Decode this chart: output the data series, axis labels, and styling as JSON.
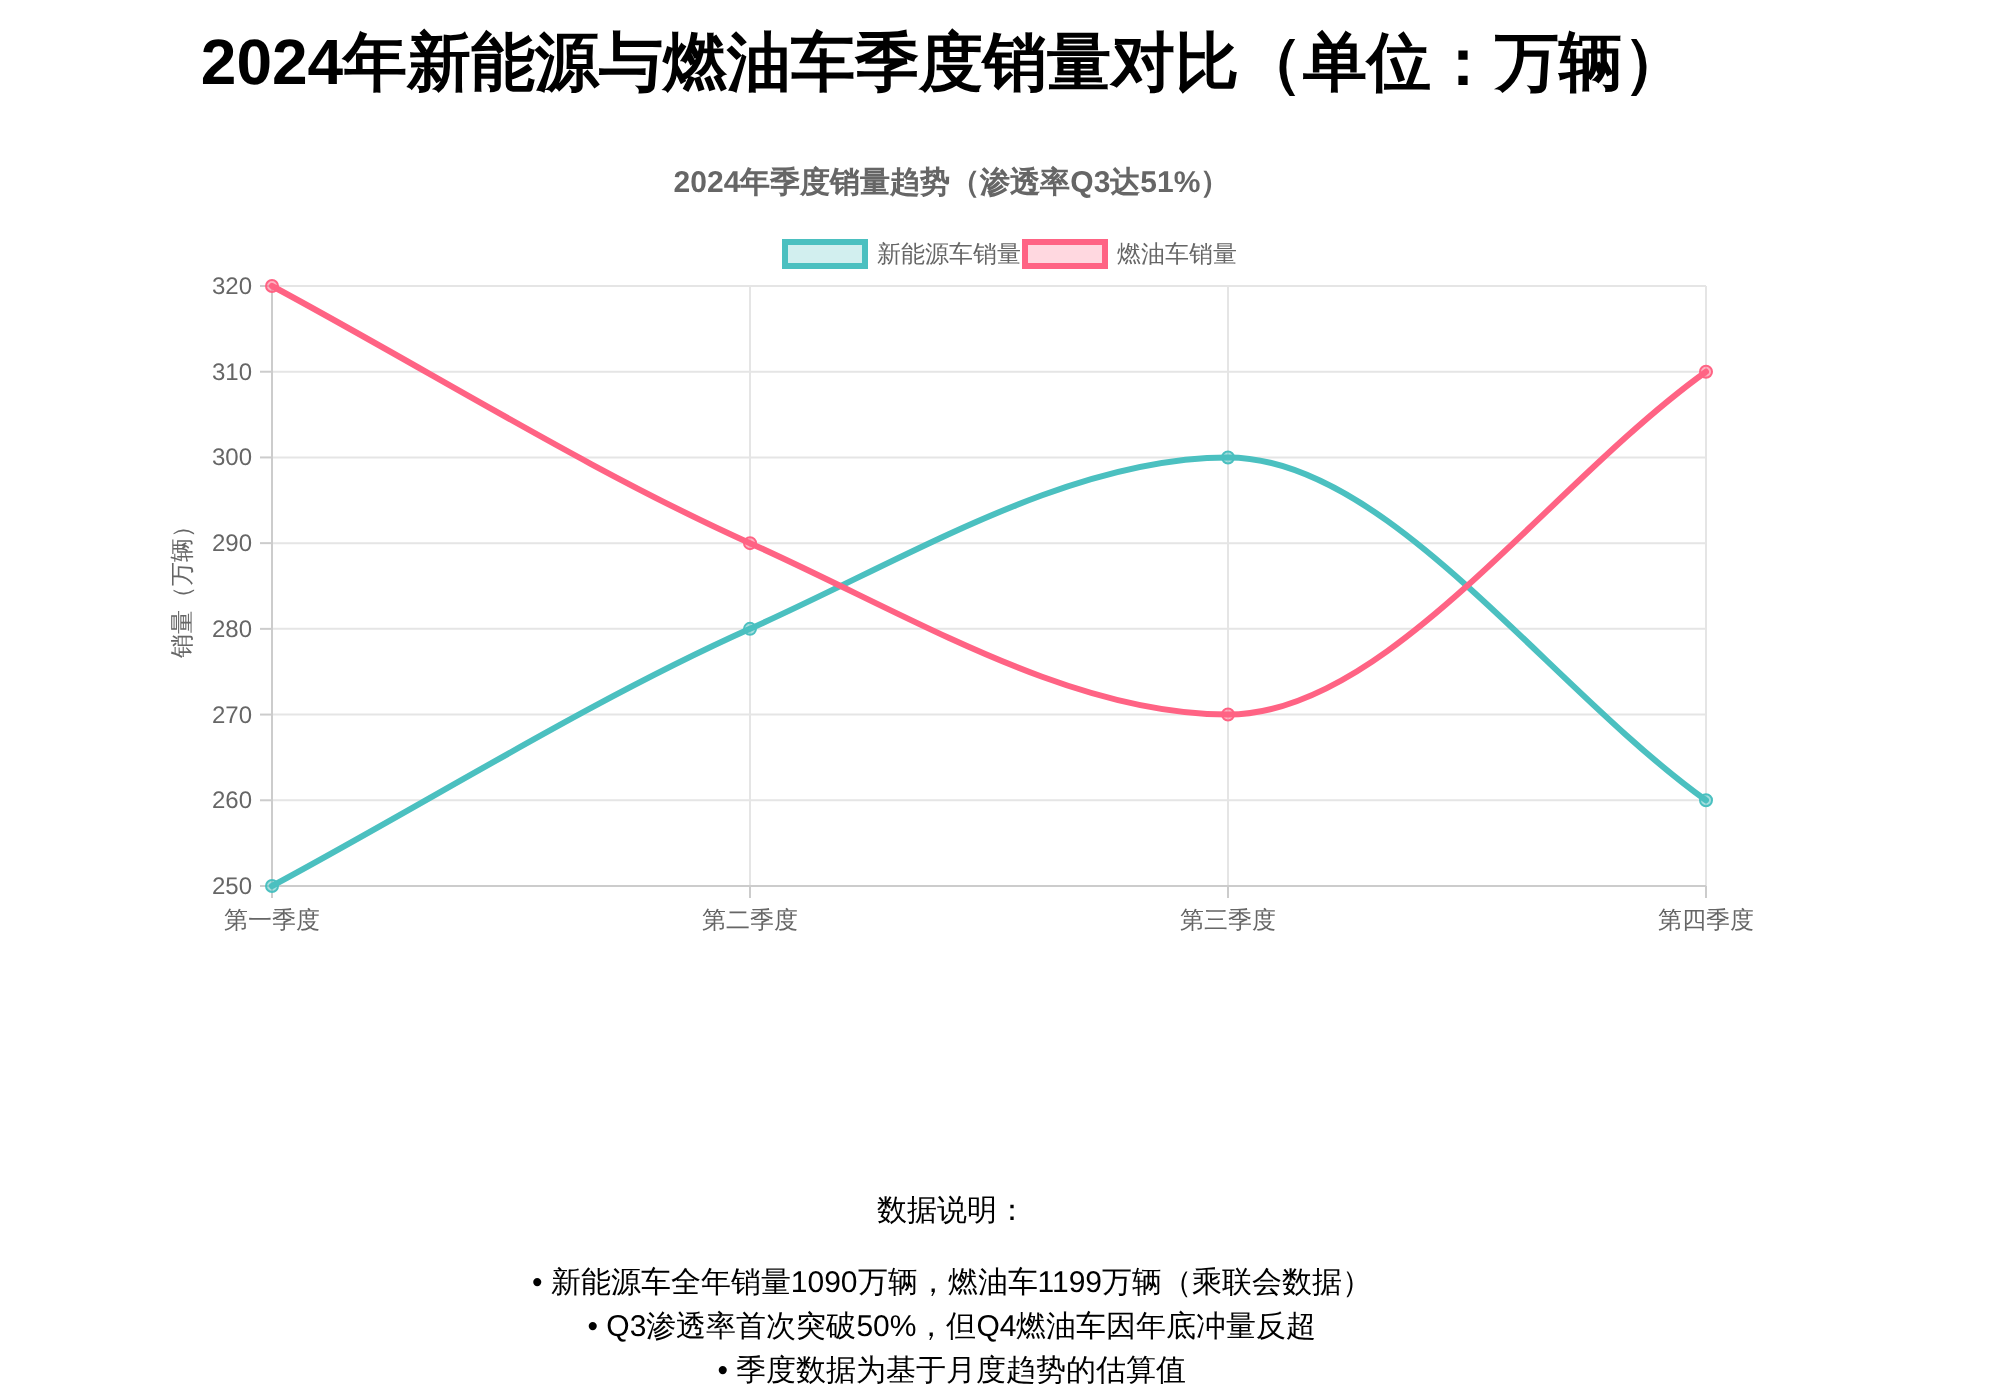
{
  "chart_data": {
    "type": "line",
    "title": "2024年新能源与燃油车季度销量对比（单位：万辆）",
    "subtitle": "2024年季度销量趋势（渗透率Q3达51%）",
    "ylabel": "销量（万辆）",
    "categories": [
      "第一季度",
      "第二季度",
      "第三季度",
      "第四季度"
    ],
    "series": [
      {
        "name": "新能源车销量",
        "color": "#4bc0c0",
        "values": [
          250,
          280,
          300,
          260
        ]
      },
      {
        "name": "燃油车销量",
        "color": "#ff6384",
        "values": [
          320,
          290,
          270,
          310
        ]
      }
    ],
    "ylim": [
      250,
      320
    ],
    "yticks": [
      250,
      260,
      270,
      280,
      290,
      300,
      310,
      320
    ],
    "grid": true,
    "legend": "top",
    "marker": "circle",
    "annotations": [
      "数据说明：",
      "• 新能源车全年销量1090万辆，燃油车1199万辆（乘联会数据）",
      "• Q3渗透率首次突破50%，但Q4燃油车因年底冲量反超",
      "• 季度数据为基于月度趋势的估算值"
    ]
  }
}
